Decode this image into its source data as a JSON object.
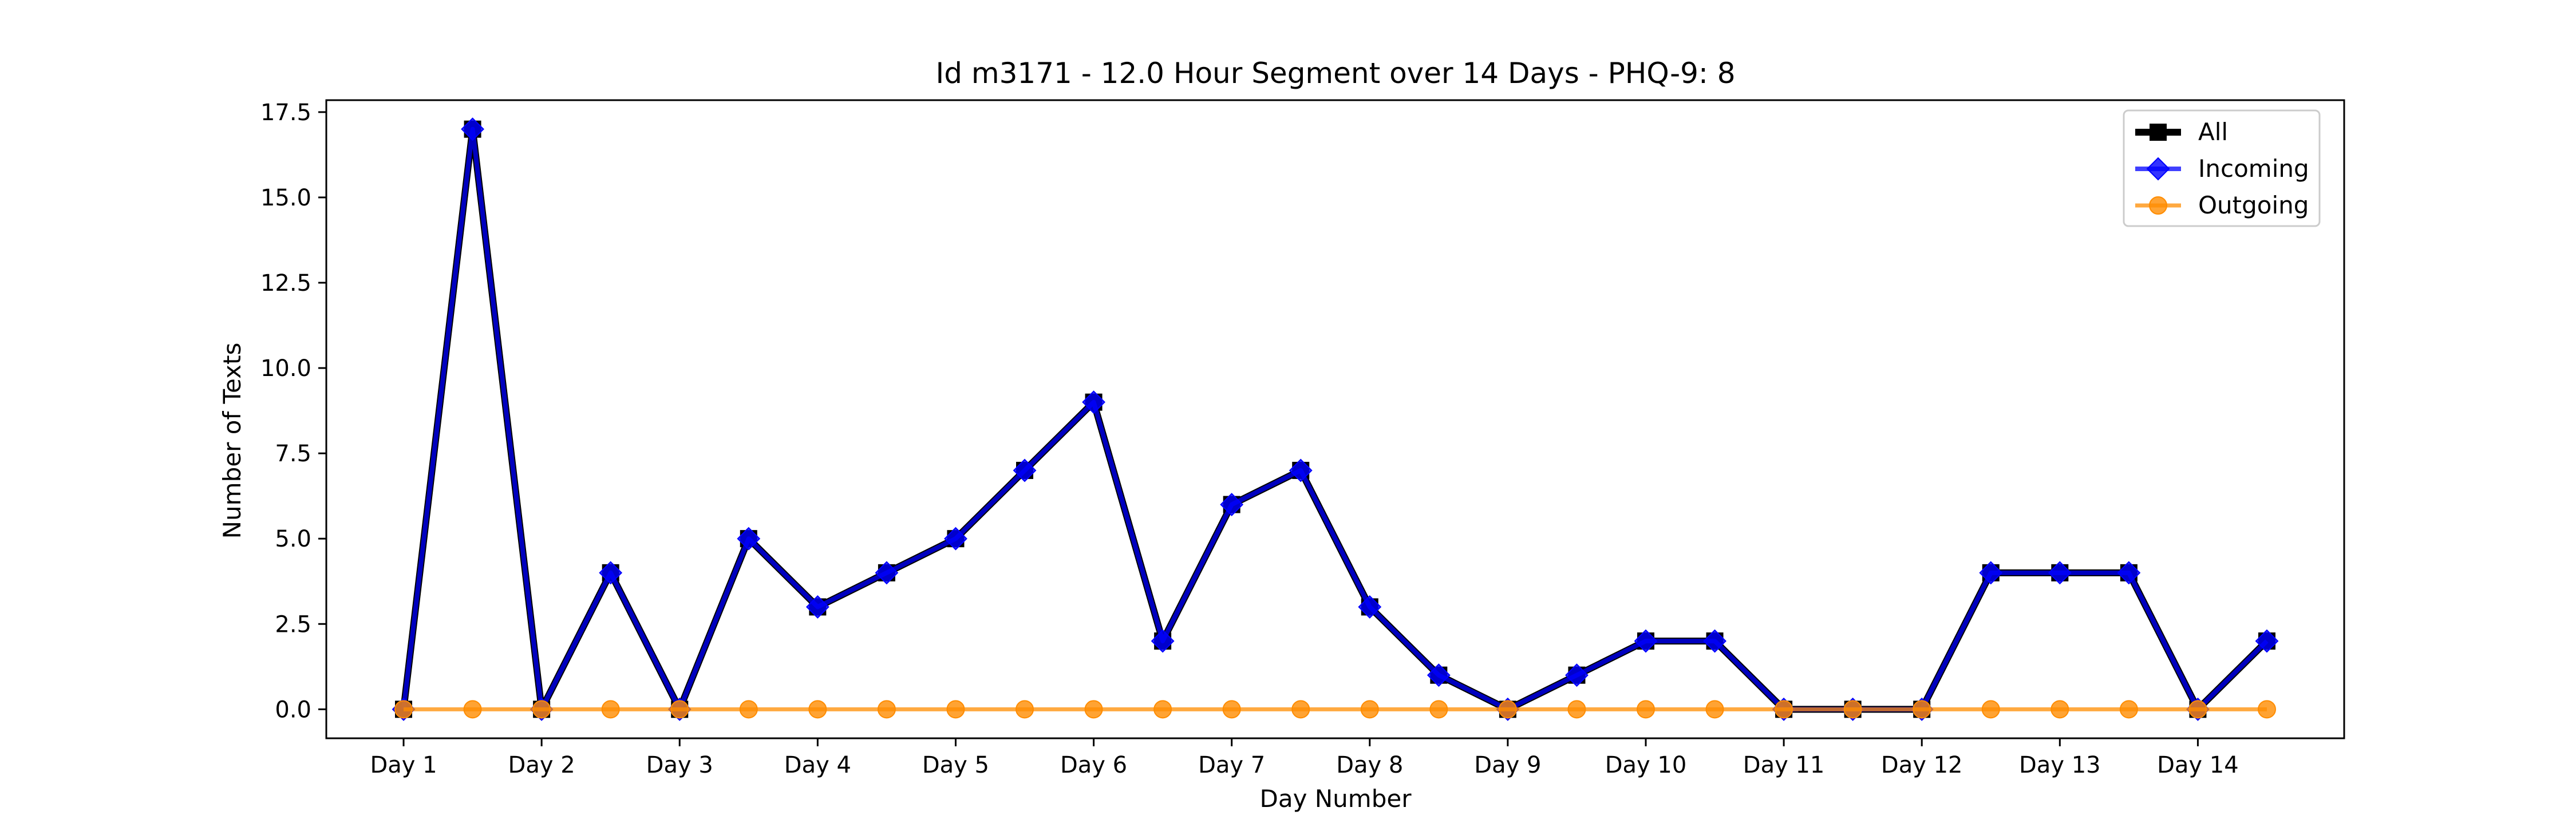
{
  "chart_data": {
    "type": "line",
    "title": "Id m3171 - 12.0 Hour Segment over 14 Days - PHQ-9: 8",
    "xlabel": "Day Number",
    "ylabel": "Number of Texts",
    "x": [
      1,
      1.5,
      2,
      2.5,
      3,
      3.5,
      4,
      4.5,
      5,
      5.5,
      6,
      6.5,
      7,
      7.5,
      8,
      8.5,
      9,
      9.5,
      10,
      10.5,
      11,
      11.5,
      12,
      12.5,
      13,
      13.5,
      14,
      14.5
    ],
    "xticks": [
      1,
      2,
      3,
      4,
      5,
      6,
      7,
      8,
      9,
      10,
      11,
      12,
      13,
      14
    ],
    "xtick_labels": [
      "Day 1",
      "Day 2",
      "Day 3",
      "Day 4",
      "Day 5",
      "Day 6",
      "Day 7",
      "Day 8",
      "Day 9",
      "Day 10",
      "Day 11",
      "Day 12",
      "Day 13",
      "Day 14"
    ],
    "xlim": [
      0.44,
      15.06
    ],
    "yticks": [
      0,
      2.5,
      5,
      7.5,
      10,
      12.5,
      15,
      17.5
    ],
    "ytick_labels": [
      "0.0",
      "2.5",
      "5.0",
      "7.5",
      "10.0",
      "12.5",
      "15.0",
      "17.5"
    ],
    "ylim": [
      -0.85,
      17.85
    ],
    "grid": false,
    "legend_position": "top-right",
    "series": [
      {
        "name": "All",
        "color": "#000000",
        "marker": "square",
        "values": [
          0,
          17,
          0,
          4,
          0,
          5,
          3,
          4,
          5,
          7,
          9,
          2,
          6,
          7,
          3,
          1,
          0,
          1,
          2,
          2,
          0,
          0,
          0,
          4,
          4,
          4,
          0,
          2
        ]
      },
      {
        "name": "Incoming",
        "color": "#0000ff",
        "marker": "diamond",
        "values": [
          0,
          17,
          0,
          4,
          0,
          5,
          3,
          4,
          5,
          7,
          9,
          2,
          6,
          7,
          3,
          1,
          0,
          1,
          2,
          2,
          0,
          0,
          0,
          4,
          4,
          4,
          0,
          2
        ]
      },
      {
        "name": "Outgoing",
        "color": "#ff8c00",
        "marker": "circle",
        "values": [
          0,
          0,
          0,
          0,
          0,
          0,
          0,
          0,
          0,
          0,
          0,
          0,
          0,
          0,
          0,
          0,
          0,
          0,
          0,
          0,
          0,
          0,
          0,
          0,
          0,
          0,
          0,
          0
        ]
      }
    ]
  }
}
